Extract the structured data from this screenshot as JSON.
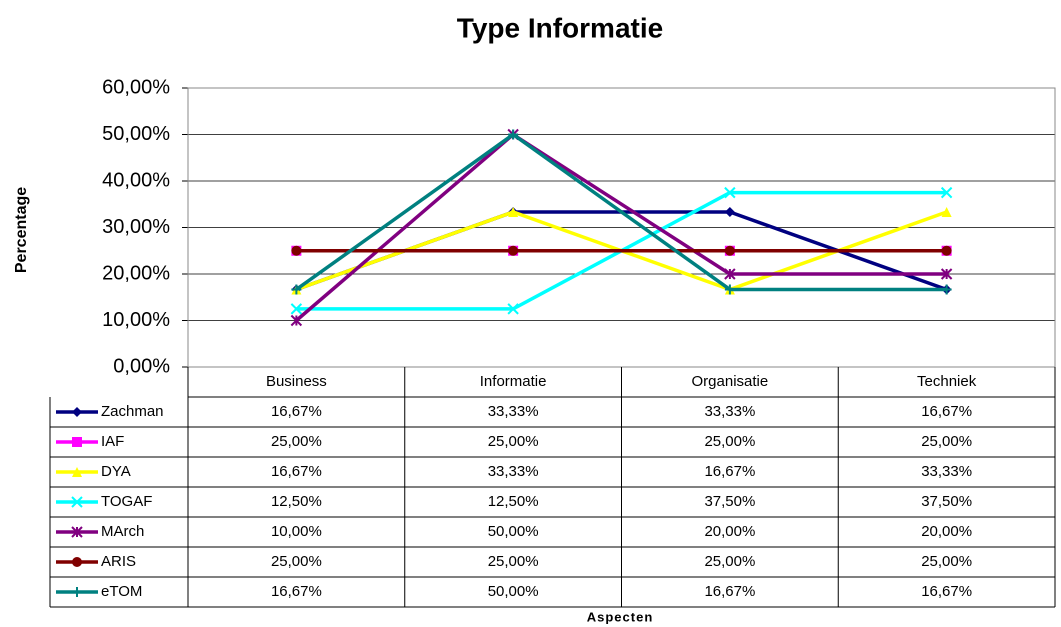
{
  "chart_data": {
    "type": "line",
    "title": "Type Informatie",
    "y_label": "Percentage",
    "x_label": "Aspecten",
    "categories": [
      "Business",
      "Informatie",
      "Organisatie",
      "Techniek"
    ],
    "ylim": [
      0,
      60
    ],
    "yticks": [
      {
        "value": 0,
        "label": "0,00%"
      },
      {
        "value": 10,
        "label": "10,00%"
      },
      {
        "value": 20,
        "label": "20,00%"
      },
      {
        "value": 30,
        "label": "30,00%"
      },
      {
        "value": 40,
        "label": "40,00%"
      },
      {
        "value": 50,
        "label": "50,00%"
      },
      {
        "value": 60,
        "label": "60,00%"
      }
    ],
    "grid": true,
    "series": [
      {
        "name": "Zachman",
        "color": "#000080",
        "marker": "diamond",
        "values": [
          16.67,
          33.33,
          33.33,
          16.67
        ],
        "value_labels": [
          "16,67%",
          "33,33%",
          "33,33%",
          "16,67%"
        ]
      },
      {
        "name": "IAF",
        "color": "#ff00ff",
        "marker": "square",
        "values": [
          25,
          25,
          25,
          25
        ],
        "value_labels": [
          "25,00%",
          "25,00%",
          "25,00%",
          "25,00%"
        ]
      },
      {
        "name": "DYA",
        "color": "#ffff00",
        "marker": "triangle",
        "values": [
          16.67,
          33.33,
          16.67,
          33.33
        ],
        "value_labels": [
          "16,67%",
          "33,33%",
          "16,67%",
          "33,33%"
        ]
      },
      {
        "name": "TOGAF",
        "color": "#00ffff",
        "marker": "x",
        "values": [
          12.5,
          12.5,
          37.5,
          37.5
        ],
        "value_labels": [
          "12,50%",
          "12,50%",
          "37,50%",
          "37,50%"
        ]
      },
      {
        "name": "MArch",
        "color": "#800080",
        "marker": "asterisk",
        "values": [
          10,
          50,
          20,
          20
        ],
        "value_labels": [
          "10,00%",
          "50,00%",
          "20,00%",
          "20,00%"
        ]
      },
      {
        "name": "ARIS",
        "color": "#800000",
        "marker": "circle",
        "values": [
          25,
          25,
          25,
          25
        ],
        "value_labels": [
          "25,00%",
          "25,00%",
          "25,00%",
          "25,00%"
        ]
      },
      {
        "name": "eTOM",
        "color": "#008080",
        "marker": "plus",
        "values": [
          16.67,
          50,
          16.67,
          16.67
        ],
        "value_labels": [
          "16,67%",
          "50,00%",
          "16,67%",
          "16,67%"
        ]
      }
    ]
  }
}
